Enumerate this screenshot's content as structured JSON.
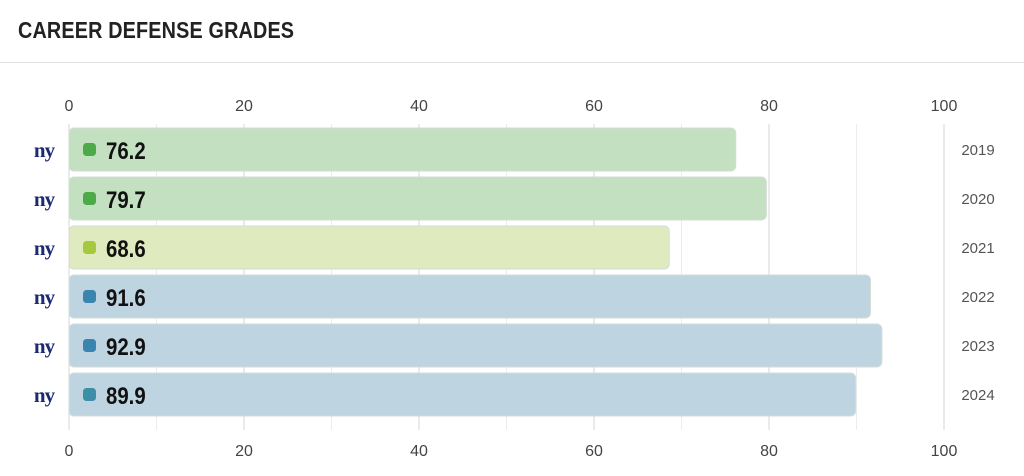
{
  "header": {
    "title": "CAREER DEFENSE GRADES"
  },
  "team_logo": {
    "icon": "ny-giants-logo-icon",
    "text": "ny",
    "color": "#1c2a72"
  },
  "chart_data": {
    "type": "bar",
    "orientation": "horizontal",
    "title": "CAREER DEFENSE GRADES",
    "xlim": [
      0,
      100
    ],
    "xticks": [
      0,
      20,
      40,
      60,
      80,
      100
    ],
    "grid": true,
    "categories": [
      "2019",
      "2020",
      "2021",
      "2022",
      "2023",
      "2024"
    ],
    "values": [
      76.2,
      79.7,
      68.6,
      91.6,
      92.9,
      89.9
    ],
    "value_labels": [
      "76.2",
      "79.7",
      "68.6",
      "91.6",
      "92.9",
      "89.9"
    ],
    "bar_colors": [
      "#c3e0c1",
      "#c3e0c1",
      "#dfeabf",
      "#bed4e0",
      "#bed4e0",
      "#bed4e0"
    ],
    "dot_colors": [
      "#4caa48",
      "#4caa48",
      "#a6c83e",
      "#3a84b0",
      "#3a84b0",
      "#3b8fa7"
    ]
  }
}
